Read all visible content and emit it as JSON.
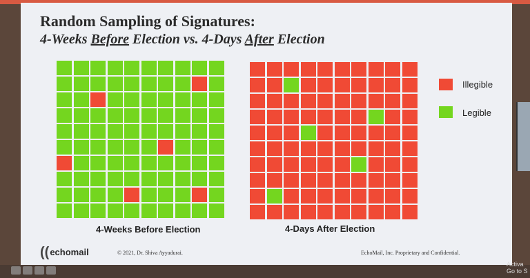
{
  "colors": {
    "illegible": "#f04a35",
    "legible": "#74d61f"
  },
  "title": {
    "line1": "Random Sampling of Signatures:",
    "line2_parts": [
      "4-Weeks ",
      "Before",
      " Election vs. 4-Days ",
      "After",
      " Election"
    ]
  },
  "legend": {
    "illegible": "Illegible",
    "legible": "Legible"
  },
  "chart_data": {
    "type": "heatmap",
    "title": "Random Sampling of Signatures: 4-Weeks Before Election vs. 4-Days After Election",
    "legend": [
      {
        "label": "Illegible",
        "color": "#f04a35"
      },
      {
        "label": "Legible",
        "color": "#74d61f"
      }
    ],
    "legend_position": "right",
    "grids": [
      {
        "name": "4-Weeks Before Election",
        "rows": 10,
        "cols": 10,
        "cells": [
          [
            0,
            0,
            0,
            0,
            0,
            0,
            0,
            0,
            0,
            0
          ],
          [
            0,
            0,
            0,
            0,
            0,
            0,
            0,
            0,
            1,
            0
          ],
          [
            0,
            0,
            1,
            0,
            0,
            0,
            0,
            0,
            0,
            0
          ],
          [
            0,
            0,
            0,
            0,
            0,
            0,
            0,
            0,
            0,
            0
          ],
          [
            0,
            0,
            0,
            0,
            0,
            0,
            0,
            0,
            0,
            0
          ],
          [
            0,
            0,
            0,
            0,
            0,
            0,
            1,
            0,
            0,
            0
          ],
          [
            1,
            0,
            0,
            0,
            0,
            0,
            0,
            0,
            0,
            0
          ],
          [
            0,
            0,
            0,
            0,
            0,
            0,
            0,
            0,
            0,
            0
          ],
          [
            0,
            0,
            0,
            0,
            1,
            0,
            0,
            0,
            1,
            0
          ],
          [
            0,
            0,
            0,
            0,
            0,
            0,
            0,
            0,
            0,
            0
          ]
        ],
        "cell_legend": {
          "0": "Legible",
          "1": "Illegible"
        },
        "illegible_count": 6,
        "legible_count": 94
      },
      {
        "name": "4-Days After Election",
        "rows": 10,
        "cols": 10,
        "cells": [
          [
            1,
            1,
            1,
            1,
            1,
            1,
            1,
            1,
            1,
            1
          ],
          [
            1,
            1,
            0,
            1,
            1,
            1,
            1,
            1,
            1,
            1
          ],
          [
            1,
            1,
            1,
            1,
            1,
            1,
            1,
            1,
            1,
            1
          ],
          [
            1,
            1,
            1,
            1,
            1,
            1,
            1,
            0,
            1,
            1
          ],
          [
            1,
            1,
            1,
            0,
            1,
            1,
            1,
            1,
            1,
            1
          ],
          [
            1,
            1,
            1,
            1,
            1,
            1,
            1,
            1,
            1,
            1
          ],
          [
            1,
            1,
            1,
            1,
            1,
            1,
            0,
            1,
            1,
            1
          ],
          [
            1,
            1,
            1,
            1,
            1,
            1,
            1,
            1,
            1,
            1
          ],
          [
            1,
            0,
            1,
            1,
            1,
            1,
            1,
            1,
            1,
            1
          ],
          [
            1,
            1,
            1,
            1,
            1,
            1,
            1,
            1,
            1,
            1
          ]
        ],
        "cell_legend": {
          "0": "Legible",
          "1": "Illegible"
        },
        "illegible_count": 95,
        "legible_count": 5
      }
    ]
  },
  "footer": {
    "logo": "echomail",
    "copyright": "© 2021, Dr. Shiva Ayyadurai.",
    "confidential": "EchoMail, Inc. Proprietary and Confidential."
  },
  "overlay": {
    "activate_line1": "Activa",
    "activate_line2": "Go to S"
  }
}
